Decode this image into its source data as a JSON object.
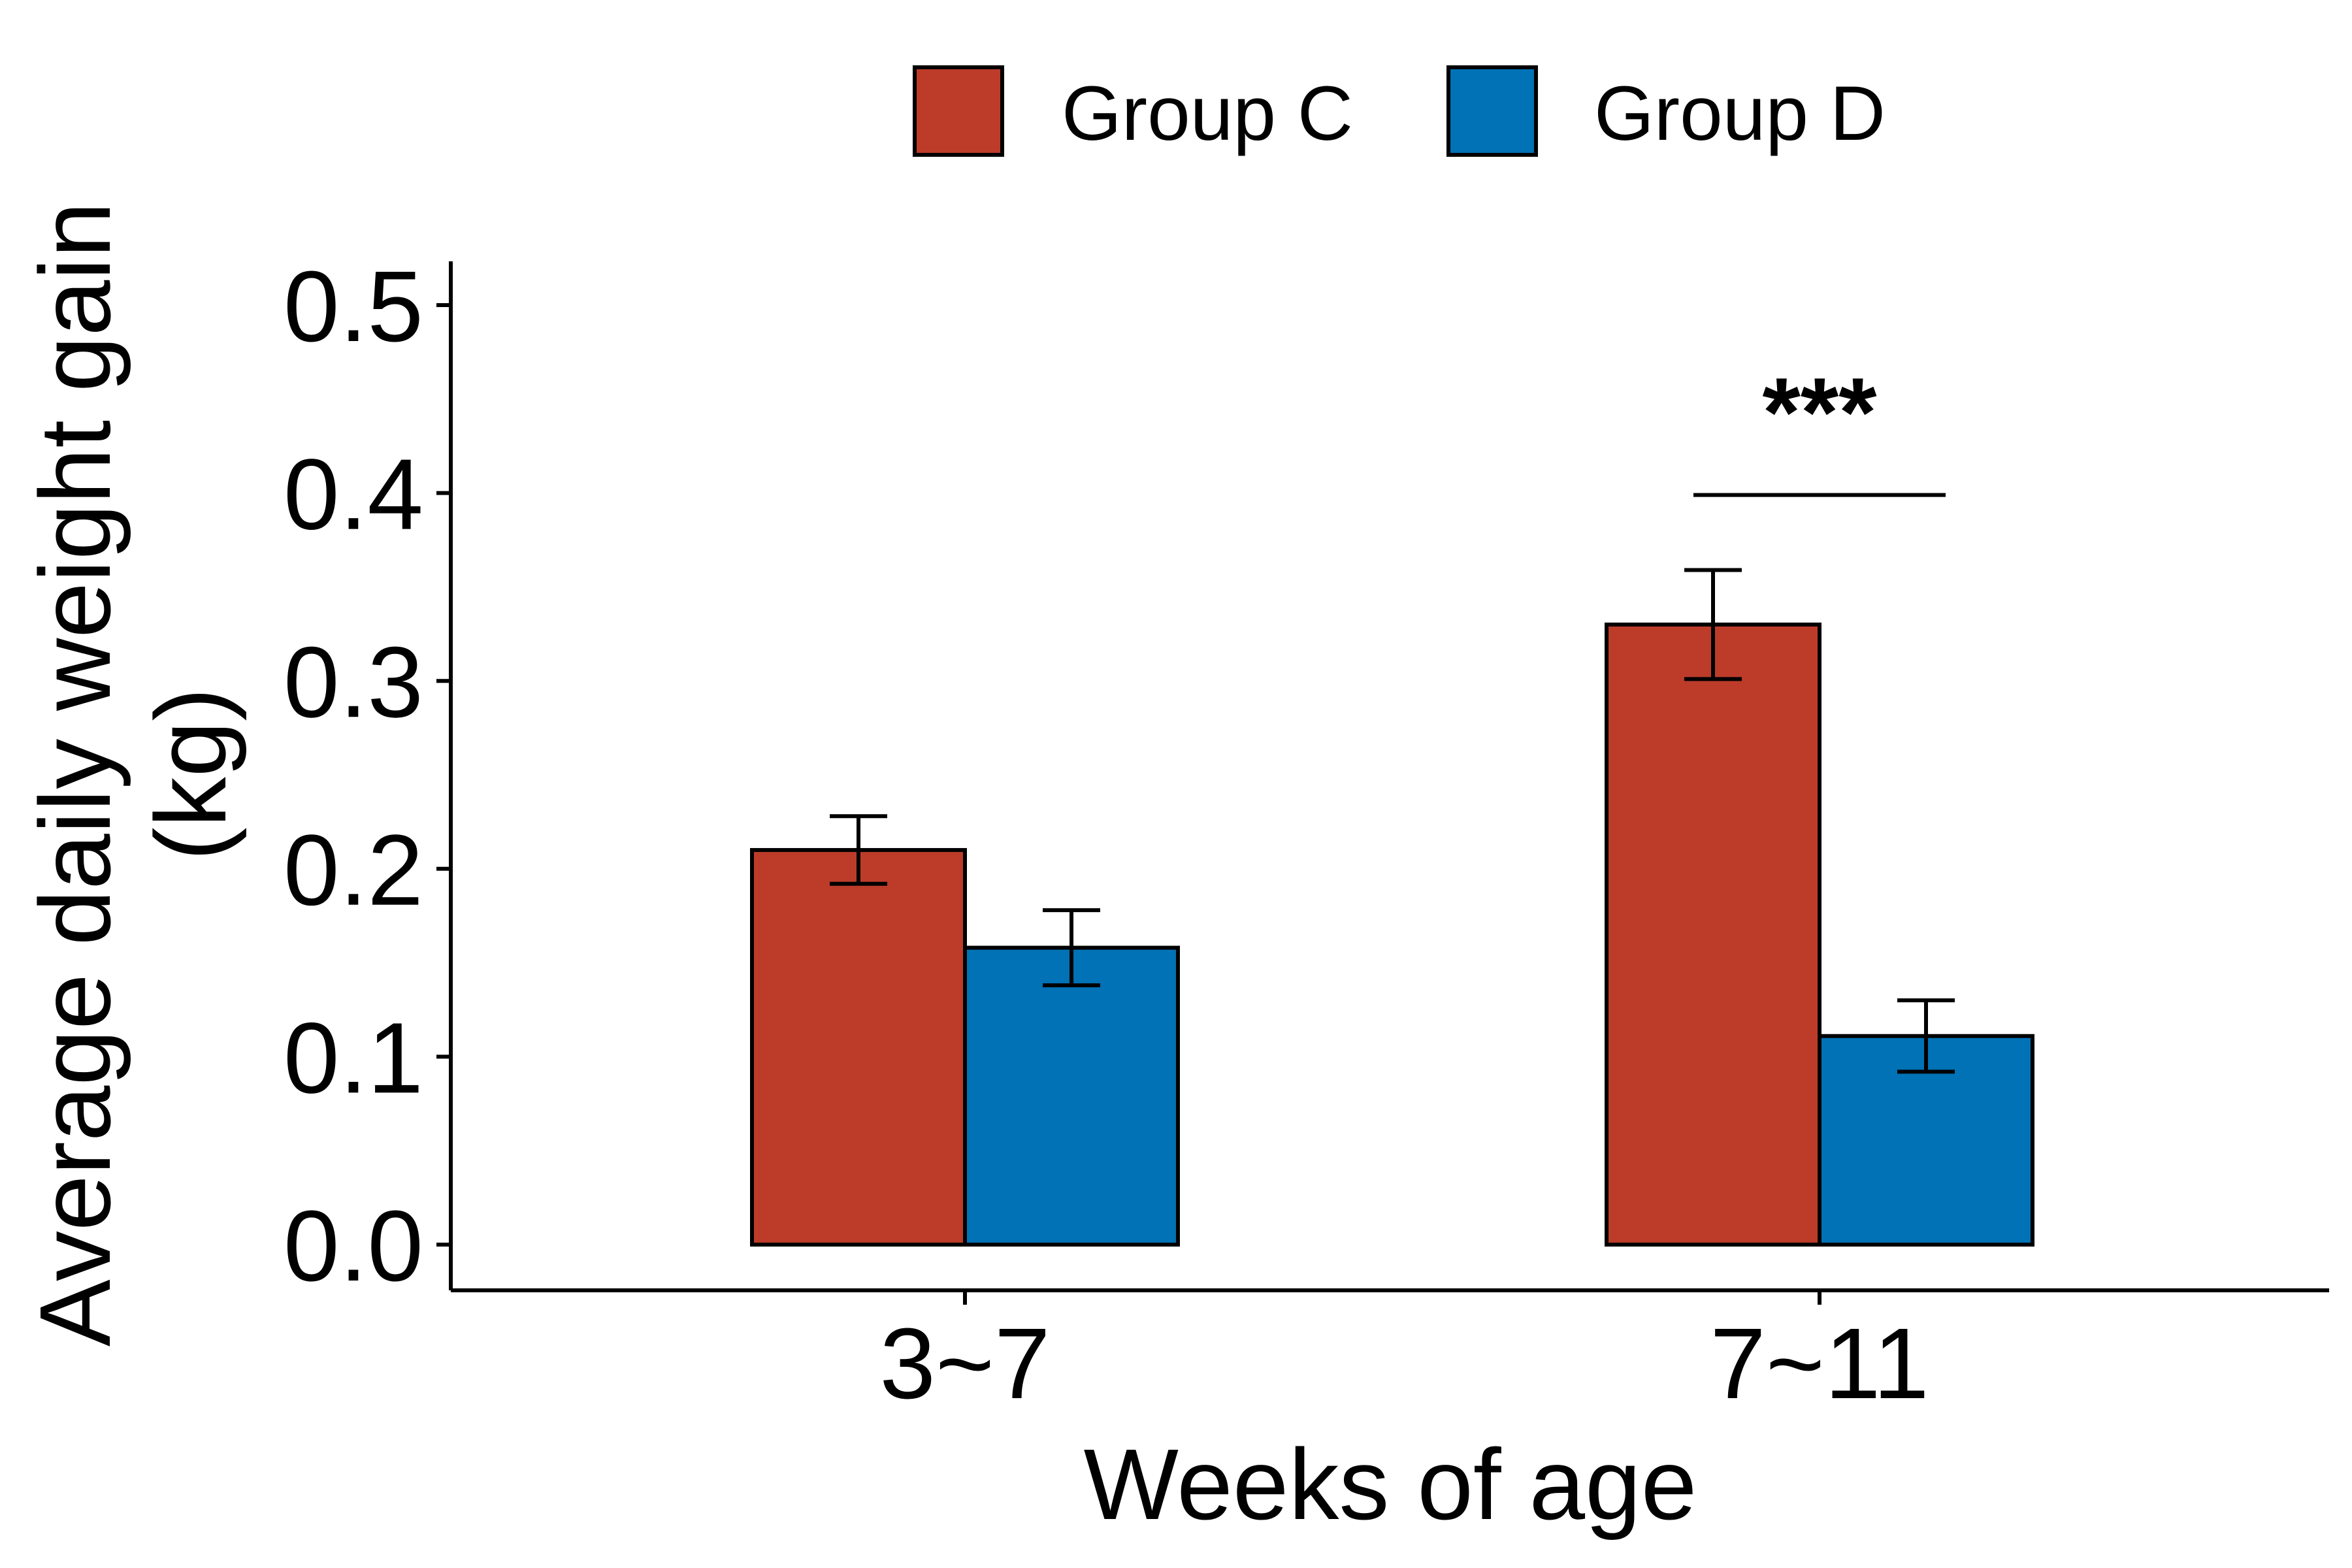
{
  "chart_data": {
    "type": "bar",
    "categories": [
      "3~7",
      "7~11"
    ],
    "series": [
      {
        "name": "Group C",
        "color": "#BC3C29",
        "values": [
          0.21,
          0.33
        ],
        "errors": [
          0.018,
          0.029
        ]
      },
      {
        "name": "Group D",
        "color": "#0072B5",
        "values": [
          0.158,
          0.111
        ],
        "errors": [
          0.02,
          0.019
        ]
      }
    ],
    "xlabel": "Weeks of age",
    "ylabel_lines": [
      "Average daily weight gain",
      "(kg)"
    ],
    "ylim": [
      0,
      0.5
    ],
    "yticks": [
      "0.0",
      "0.1",
      "0.2",
      "0.3",
      "0.4",
      "0.5"
    ],
    "ytick_values": [
      0,
      0.1,
      0.2,
      0.3,
      0.4,
      0.5
    ],
    "legend_position": "top",
    "grid": false,
    "annotations": [
      {
        "text": "***",
        "category": "7~11",
        "bracket_value": 0.4
      }
    ]
  }
}
